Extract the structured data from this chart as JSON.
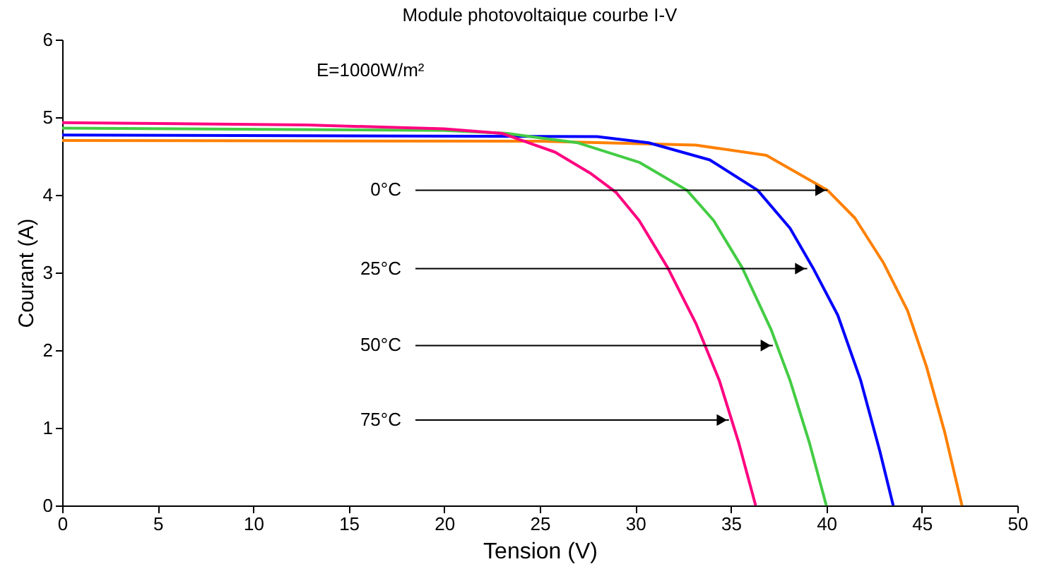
{
  "chart_data": {
    "type": "line",
    "title": "Module photovoltaique courbe I-V",
    "xlabel": "Tension (V)",
    "ylabel": "Courant (A)",
    "xlim": [
      0,
      50
    ],
    "xticks": [
      0,
      5,
      10,
      15,
      20,
      25,
      30,
      35,
      40,
      45,
      50
    ],
    "ylim": [
      0,
      6
    ],
    "yticks": [
      0,
      1,
      2,
      3,
      4,
      5,
      6
    ],
    "grid": false,
    "marker": "none",
    "line_style": "solid",
    "series": [
      {
        "color": "#ff8000",
        "x": [
          0,
          25,
          33.16,
          36.86,
          40.06,
          41.5,
          43.0,
          44.25,
          45.24,
          46.2,
          47.1
        ],
        "values": [
          4.7,
          4.69,
          4.64,
          4.51,
          4.06,
          3.7,
          3.12,
          2.51,
          1.79,
          0.94,
          0
        ]
      },
      {
        "color": "#0000ff",
        "x": [
          0,
          28,
          30.7,
          33.9,
          36.4,
          38.1,
          39.3,
          40.6,
          41.8,
          42.8,
          43.5
        ],
        "values": [
          4.77,
          4.75,
          4.67,
          4.45,
          4.06,
          3.57,
          3.06,
          2.45,
          1.61,
          0.7,
          0
        ]
      },
      {
        "color": "#44cc44",
        "x": [
          0,
          20,
          23.3,
          27.0,
          30.2,
          32.7,
          34.1,
          35.6,
          37.1,
          38.1,
          39.1,
          40.0
        ],
        "values": [
          4.86,
          4.83,
          4.79,
          4.67,
          4.42,
          4.06,
          3.67,
          3.06,
          2.27,
          1.61,
          0.82,
          0
        ]
      },
      {
        "color": "#ff0080",
        "x": [
          0,
          12.8,
          20,
          23.05,
          25.8,
          27.7,
          29.0,
          30.2,
          31.7,
          33.2,
          34.4,
          35.4,
          36.3
        ],
        "values": [
          4.93,
          4.9,
          4.85,
          4.79,
          4.55,
          4.27,
          4.03,
          3.67,
          3.06,
          2.33,
          1.61,
          0.82,
          0
        ]
      }
    ],
    "annotations": [
      "E=1000W/m²",
      {
        "text": "0°C",
        "x": 40.06,
        "y": 4.06
      },
      {
        "text": "25°C",
        "x": 39.0,
        "y": 3.05
      },
      {
        "text": "50°C",
        "x": 37.2,
        "y": 2.06
      },
      {
        "text": "75°C",
        "x": 34.9,
        "y": 1.1
      }
    ]
  }
}
